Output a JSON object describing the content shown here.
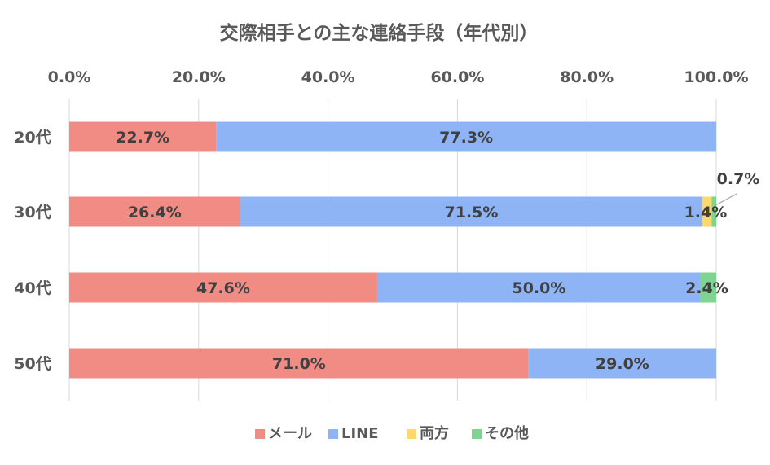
{
  "chart_data": {
    "type": "bar",
    "orientation": "horizontal",
    "stacked": true,
    "title": "交際相手との主な連絡手段（年代別）",
    "xlabel": "",
    "ylabel": "",
    "xlim": [
      0,
      100
    ],
    "x_ticks": [
      "0.0%",
      "20.0%",
      "40.0%",
      "60.0%",
      "80.0%",
      "100.0%"
    ],
    "x_tick_values": [
      0,
      20,
      40,
      60,
      80,
      100
    ],
    "grid": true,
    "legend_position": "bottom",
    "categories": [
      "20代",
      "30代",
      "40代",
      "50代"
    ],
    "series": [
      {
        "name": "メール",
        "color": "#f08c84",
        "values": [
          22.7,
          26.4,
          47.6,
          71.0
        ],
        "labels": [
          "22.7%",
          "26.4%",
          "47.6%",
          "71.0%"
        ]
      },
      {
        "name": "LINE",
        "color": "#8fb4f6",
        "values": [
          77.3,
          71.5,
          50.0,
          29.0
        ],
        "labels": [
          "77.3%",
          "71.5%",
          "50.0%",
          "29.0%"
        ]
      },
      {
        "name": "両方",
        "color": "#fdd86b",
        "values": [
          0,
          1.4,
          0,
          0
        ],
        "labels": [
          "",
          "1.4%",
          "",
          ""
        ]
      },
      {
        "name": "その他",
        "color": "#7fd492",
        "values": [
          0,
          0.7,
          2.4,
          0
        ],
        "labels": [
          "",
          "0.7%",
          "2.4%",
          ""
        ]
      }
    ],
    "annotations": [
      {
        "text": "0.7%",
        "category": "30代",
        "series": "その他",
        "callout": true
      }
    ]
  }
}
